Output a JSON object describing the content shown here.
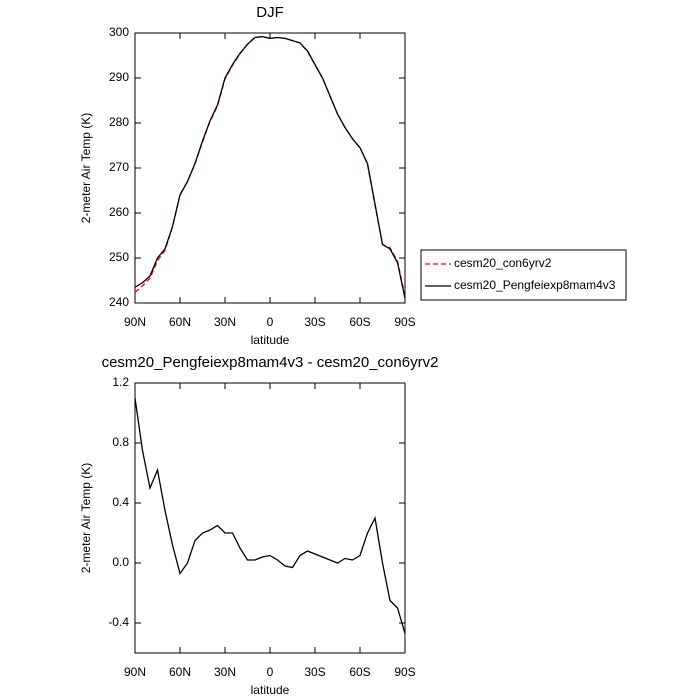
{
  "chart_data": [
    {
      "type": "line",
      "title": "DJF",
      "xlabel": "latitude",
      "ylabel": "2-meter Air Temp (K)",
      "x": [
        90,
        85,
        80,
        75,
        70,
        65,
        60,
        55,
        50,
        45,
        40,
        35,
        30,
        25,
        20,
        15,
        10,
        5,
        0,
        -5,
        -10,
        -15,
        -20,
        -25,
        -30,
        -35,
        -40,
        -45,
        -50,
        -55,
        -60,
        -65,
        -70,
        -75,
        -80,
        -85,
        -90
      ],
      "series": [
        {
          "name": "cesm20_con6yrv2",
          "color": "#ff0000",
          "style": "dashed",
          "values": [
            242.4,
            243.8,
            245.5,
            249.4,
            251.7,
            256.9,
            264.1,
            267,
            270.9,
            275.8,
            280.3,
            283.8,
            289.8,
            292.8,
            295.4,
            297.5,
            299,
            299.2,
            298.8,
            299,
            298.8,
            298.3,
            297.8,
            295.9,
            292.9,
            290,
            286,
            282,
            279,
            276.5,
            274.5,
            270.8,
            261.7,
            253,
            252.3,
            249.3,
            241.5
          ]
        },
        {
          "name": "cesm20_Pengfeiexp8mam4v3",
          "color": "#000000",
          "style": "solid",
          "values": [
            243.5,
            244.5,
            246,
            250,
            252,
            257,
            264,
            267,
            271,
            276,
            280.5,
            284,
            290,
            293,
            295.5,
            297.5,
            299,
            299.2,
            298.8,
            299,
            298.8,
            298.3,
            297.8,
            296,
            293,
            290,
            286,
            282,
            279,
            276.5,
            274.5,
            271,
            262,
            253,
            252,
            249,
            241
          ]
        }
      ],
      "xlim": [
        90,
        -90
      ],
      "xticks": [
        {
          "value": 90,
          "label": "90N"
        },
        {
          "value": 60,
          "label": "60N"
        },
        {
          "value": 30,
          "label": "30N"
        },
        0,
        {
          "value": -30,
          "label": "30S"
        },
        {
          "value": -60,
          "label": "60S"
        },
        {
          "value": -90,
          "label": "90S"
        }
      ],
      "ylim": [
        240,
        300
      ],
      "yticks": [
        240,
        250,
        260,
        270,
        280,
        290,
        300
      ],
      "legend": "right"
    },
    {
      "type": "line",
      "title": "cesm20_Pengfeiexp8mam4v3 - cesm20_con6yrv2",
      "xlabel": "latitude",
      "ylabel": "2-meter Air Temp (K)",
      "x": [
        90,
        85,
        80,
        75,
        70,
        65,
        60,
        55,
        50,
        45,
        40,
        35,
        30,
        25,
        20,
        15,
        10,
        5,
        0,
        -5,
        -10,
        -15,
        -20,
        -25,
        -30,
        -35,
        -40,
        -45,
        -50,
        -55,
        -60,
        -65,
        -70,
        -75,
        -80,
        -85,
        -90
      ],
      "series": [
        {
          "color": "#000000",
          "style": "solid",
          "values": [
            1.1,
            0.75,
            0.5,
            0.62,
            0.35,
            0.12,
            -0.07,
            0.0,
            0.15,
            0.2,
            0.22,
            0.25,
            0.2,
            0.2,
            0.1,
            0.02,
            0.02,
            0.04,
            0.05,
            0.02,
            -0.02,
            -0.03,
            0.05,
            0.08,
            0.06,
            0.04,
            0.02,
            0.0,
            0.03,
            0.02,
            0.05,
            0.2,
            0.3,
            0.0,
            -0.25,
            -0.3,
            -0.47
          ]
        }
      ],
      "xlim": [
        90,
        -90
      ],
      "xticks": [
        {
          "value": 90,
          "label": "90N"
        },
        {
          "value": 60,
          "label": "60N"
        },
        {
          "value": 30,
          "label": "30N"
        },
        0,
        {
          "value": -30,
          "label": "30S"
        },
        {
          "value": -60,
          "label": "60S"
        },
        {
          "value": -90,
          "label": "90S"
        }
      ],
      "ylim": [
        -0.6,
        1.2
      ],
      "yticks": [
        -0.4,
        {
          "value": 0,
          "label": "0.0"
        },
        0.4,
        0.8,
        1.2
      ]
    }
  ]
}
